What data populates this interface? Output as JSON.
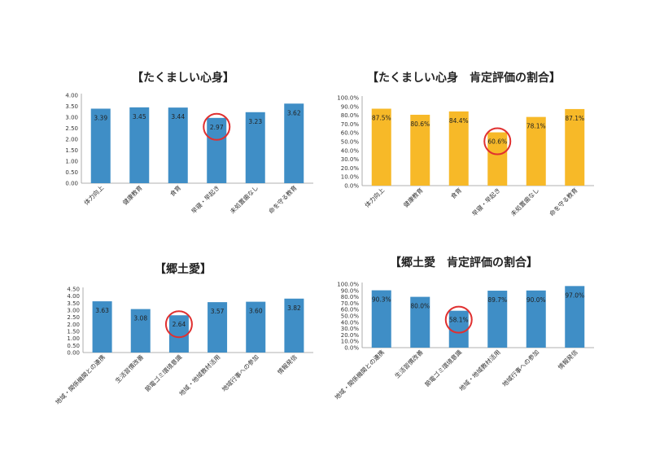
{
  "chart_data": [
    {
      "type": "bar",
      "title": "【たくましい心身】",
      "categories": [
        "体力向上",
        "健康教育",
        "食育",
        "早寝・早起き",
        "未処置歯なし",
        "命を守る教育"
      ],
      "values": [
        3.39,
        3.45,
        3.44,
        2.97,
        3.23,
        3.62
      ],
      "data_labels": [
        "3.39",
        "3.45",
        "3.44",
        "2.97",
        "3.23",
        "3.62"
      ],
      "ylim": [
        0,
        4
      ],
      "yticks": [
        "0.00",
        "0.50",
        "1.00",
        "1.50",
        "2.00",
        "2.50",
        "3.00",
        "3.50",
        "4.00"
      ],
      "bar_color": "#3f8ec6",
      "highlight_index": 3,
      "highlight_color": "#e03030",
      "grid": false
    },
    {
      "type": "bar",
      "title": "【たくましい心身　肯定評価の割合】",
      "categories": [
        "体力向上",
        "健康教育",
        "食育",
        "早寝・早起き",
        "未処置歯なし",
        "命を守る教育"
      ],
      "values": [
        87.5,
        80.6,
        84.4,
        60.6,
        78.1,
        87.1
      ],
      "data_labels": [
        "87.5%",
        "80.6%",
        "84.4%",
        "60.6%",
        "78.1%",
        "87.1%"
      ],
      "ylim": [
        0,
        100
      ],
      "yticks": [
        "0.0%",
        "10.0%",
        "20.0%",
        "30.0%",
        "40.0%",
        "50.0%",
        "60.0%",
        "70.0%",
        "80.0%",
        "90.0%",
        "100.0%"
      ],
      "bar_color": "#f7b928",
      "highlight_index": 3,
      "highlight_color": "#e03030",
      "grid": false
    },
    {
      "type": "bar",
      "title": "【郷土愛】",
      "categories": [
        "地域・関係機関との連携",
        "生活習慣改善",
        "節電ゴミ環境意識",
        "地域・地域教材活用",
        "地域行事への参加",
        "情報発信"
      ],
      "values": [
        3.63,
        3.08,
        2.64,
        3.57,
        3.6,
        3.82
      ],
      "data_labels": [
        "3.63",
        "3.08",
        "2.64",
        "3.57",
        "3.60",
        "3.82"
      ],
      "ylim": [
        0,
        4.5
      ],
      "yticks": [
        "0.00",
        "0.50",
        "1.00",
        "1.50",
        "2.00",
        "2.50",
        "3.00",
        "3.50",
        "4.00",
        "4.50"
      ],
      "bar_color": "#3f8ec6",
      "highlight_index": 2,
      "highlight_color": "#e03030",
      "grid": false
    },
    {
      "type": "bar",
      "title": "【郷土愛　肯定評価の割合】",
      "categories": [
        "地域・関係機関との連携",
        "生活習慣改善",
        "節電ゴミ環境意識",
        "地域・地域教材活用",
        "地域行事への参加",
        "情報発信"
      ],
      "values": [
        90.3,
        80.0,
        58.1,
        89.7,
        90.0,
        97.0
      ],
      "data_labels": [
        "90.3%",
        "80.0%",
        "58.1%",
        "89.7%",
        "90.0%",
        "97.0%"
      ],
      "ylim": [
        0,
        100
      ],
      "yticks": [
        "0.0%",
        "10.0%",
        "20.0%",
        "30.0%",
        "40.0%",
        "50.0%",
        "60.0%",
        "70.0%",
        "80.0%",
        "90.0%",
        "100.0%"
      ],
      "bar_color": "#3f8ec6",
      "highlight_index": 2,
      "highlight_color": "#e03030",
      "grid": false
    }
  ]
}
